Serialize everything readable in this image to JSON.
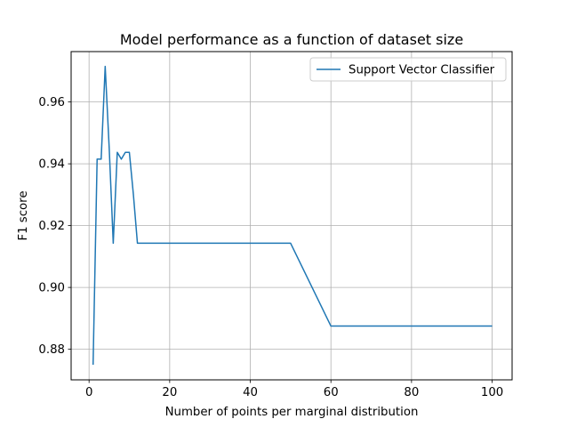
{
  "chart_data": {
    "type": "line",
    "title": "Model performance as a function of dataset size",
    "xlabel": "Number of points per marginal distribution",
    "ylabel": "F1 score",
    "xlim": [
      -4.45,
      104.95
    ],
    "ylim": [
      0.8701,
      0.9763
    ],
    "x_ticks": [
      0,
      20,
      40,
      60,
      80,
      100
    ],
    "x_tick_labels": [
      "0",
      "20",
      "40",
      "60",
      "80",
      "100"
    ],
    "y_ticks": [
      0.88,
      0.9,
      0.92,
      0.94,
      0.96
    ],
    "y_tick_labels": [
      "0.88",
      "0.90",
      "0.92",
      "0.94",
      "0.96"
    ],
    "grid": true,
    "legend_position": "top-right",
    "series": [
      {
        "name": "Support Vector Classifier",
        "color": "#1f77b4",
        "x": [
          1,
          2,
          3,
          4,
          5,
          6,
          7,
          8,
          9,
          10,
          11,
          12,
          15,
          20,
          25,
          30,
          40,
          50,
          60,
          70,
          80,
          90,
          100
        ],
        "y": [
          0.875,
          0.9415,
          0.9415,
          0.9715,
          0.945,
          0.9143,
          0.9437,
          0.9415,
          0.9437,
          0.9437,
          0.93,
          0.9143,
          0.9143,
          0.9143,
          0.9143,
          0.9143,
          0.9143,
          0.9143,
          0.8875,
          0.8875,
          0.8875,
          0.8875,
          0.8875
        ]
      }
    ]
  }
}
